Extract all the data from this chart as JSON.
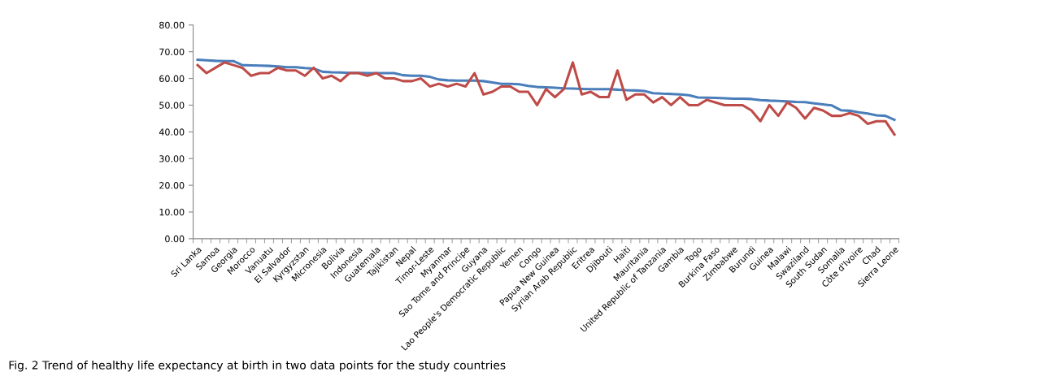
{
  "chart_data": {
    "type": "line",
    "categories": [
      "Sri Lanka",
      null,
      "Samoa",
      null,
      "Georgia",
      null,
      "Morocco",
      null,
      "Vanuatu",
      null,
      "El Salvador",
      null,
      "Kyrgyzstan",
      null,
      "Micronesia",
      null,
      "Bolivia",
      null,
      "Indonesia",
      null,
      "Guatemala",
      null,
      "Tajikistan",
      null,
      "Nepal",
      null,
      "Timor-Leste",
      null,
      "Myanmar",
      null,
      "Sao Tome and Principe",
      null,
      "Guyana",
      null,
      "Lao People's Democratic Republic",
      null,
      "Yemen",
      null,
      "Congo",
      null,
      "Papua New Guinea",
      null,
      "Syrian Arab Republic",
      null,
      "Eritrea",
      null,
      "Djibouti",
      null,
      "Haiti",
      null,
      "Mauritania",
      null,
      "United Republic of Tanzania",
      null,
      "Gambia",
      null,
      "Togo",
      null,
      "Burkina Faso",
      null,
      "Zimbabwe",
      null,
      "Burundi",
      null,
      "Guinea",
      null,
      "Malawi",
      null,
      "Swaziland",
      null,
      "South Sudan",
      null,
      "Somalia",
      null,
      "Côte d'Ivoire",
      null,
      "Chad",
      null,
      "Sierra Leone"
    ],
    "series": [
      {
        "color": "#4a7ebb",
        "values": [
          67,
          66.8,
          66.6,
          66.5,
          66.5,
          65,
          64.9,
          64.8,
          64.7,
          64.5,
          64.2,
          64.2,
          63.9,
          63.7,
          62.5,
          62.3,
          62.2,
          62.1,
          62.1,
          62,
          62,
          62,
          62,
          61.2,
          61,
          61,
          60.6,
          59.6,
          59.3,
          59.2,
          59.2,
          59.2,
          59,
          58.5,
          58,
          58,
          57.8,
          57.2,
          56.8,
          56.7,
          56.5,
          56.3,
          56.2,
          56.1,
          56,
          56,
          56,
          55.8,
          55.6,
          55.5,
          55.3,
          54.5,
          54.3,
          54.2,
          54,
          53.7,
          52.9,
          52.8,
          52.7,
          52.6,
          52.4,
          52.4,
          52.3,
          51.9,
          51.7,
          51.6,
          51.4,
          51.2,
          51.1,
          50.7,
          50.3,
          49.9,
          48.1,
          47.9,
          47.3,
          46.9,
          46.2,
          46,
          44.5
        ]
      },
      {
        "color": "#be4b48",
        "values": [
          65,
          62,
          64,
          66,
          65,
          64,
          61,
          62,
          62,
          64,
          63,
          63,
          61,
          64,
          60,
          61,
          59,
          62,
          62,
          61,
          62,
          60,
          60,
          59,
          59,
          60,
          57,
          58,
          57,
          58,
          57,
          62,
          54,
          55,
          57,
          57,
          55,
          55,
          50,
          56,
          53,
          56,
          66,
          54,
          55,
          53,
          53,
          63,
          52,
          54,
          54,
          51,
          53,
          50,
          53,
          50,
          50,
          52,
          51,
          50,
          50,
          50,
          48,
          44,
          50,
          46,
          51,
          49,
          45,
          49,
          48,
          46,
          46,
          47,
          46,
          43,
          44,
          44,
          39
        ]
      }
    ],
    "ylim": [
      0,
      80
    ],
    "yticks": [
      {
        "value": 0,
        "label": "0.00"
      },
      {
        "value": 10,
        "label": "10.00"
      },
      {
        "value": 20,
        "label": "20.00"
      },
      {
        "value": 30,
        "label": "30.00"
      },
      {
        "value": 40,
        "label": "40.00"
      },
      {
        "value": 50,
        "label": "50.00"
      },
      {
        "value": 60,
        "label": "60.00"
      },
      {
        "value": 70,
        "label": "70.00"
      },
      {
        "value": 80,
        "label": "80.00"
      }
    ],
    "grid": false,
    "legend": false,
    "annotations": [
      "Fig. 2 Trend of healthy life expectancy at birth in two data points for the study countries"
    ]
  }
}
